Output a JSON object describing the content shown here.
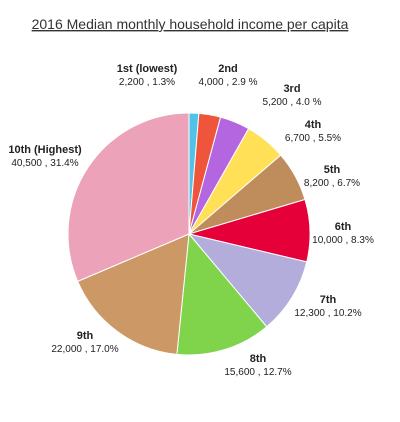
{
  "chart_data": {
    "type": "pie",
    "title": "2016 Median monthly household income per capita",
    "slices": [
      {
        "name": "1st (lowest)",
        "amount": "2,200",
        "percent": "1.3%",
        "value": 1.3,
        "color": "#4fc3e8"
      },
      {
        "name": "2nd",
        "amount": "4,000",
        "percent": "2.9 %",
        "value": 2.9,
        "color": "#ee553b"
      },
      {
        "name": "3rd",
        "amount": "5,200",
        "percent": "4.0 %",
        "value": 4.0,
        "color": "#b366e0"
      },
      {
        "name": "4th",
        "amount": "6,700",
        "percent": "5.5%",
        "value": 5.5,
        "color": "#ffe057"
      },
      {
        "name": "5th",
        "amount": "8,200",
        "percent": "6.7%",
        "value": 6.7,
        "color": "#bf8c5c"
      },
      {
        "name": "6th",
        "amount": "10,000",
        "percent": "8.3%",
        "value": 8.3,
        "color": "#e6003a"
      },
      {
        "name": "7th",
        "amount": "12,300",
        "percent": "10.2%",
        "value": 10.2,
        "color": "#b3addb"
      },
      {
        "name": "8th",
        "amount": "15,600",
        "percent": "12.7%",
        "value": 12.7,
        "color": "#7fd44c"
      },
      {
        "name": "9th",
        "amount": "22,000",
        "percent": "17.0%",
        "value": 17.0,
        "color": "#cc9966"
      },
      {
        "name": "10th (Highest)",
        "amount": "40,500",
        "percent": "31.4%",
        "value": 31.4,
        "color": "#eca2b8"
      }
    ]
  }
}
